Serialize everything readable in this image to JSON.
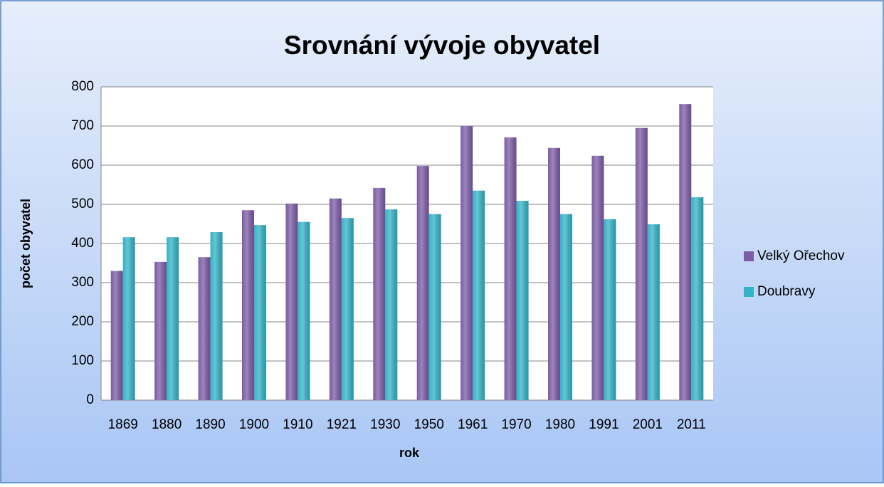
{
  "chart_data": {
    "type": "bar",
    "title": "Srovnání vývoje obyvatel",
    "x_label": "rok",
    "y_label": "počet obyvatel",
    "categories": [
      "1869",
      "1880",
      "1890",
      "1900",
      "1910",
      "1921",
      "1930",
      "1950",
      "1961",
      "1970",
      "1980",
      "1991",
      "2001",
      "2011"
    ],
    "series": [
      {
        "name": "Velký Ořechov",
        "color": "#7b5ca6",
        "values": [
          330,
          353,
          365,
          485,
          502,
          515,
          542,
          598,
          700,
          671,
          644,
          624,
          695,
          756
        ]
      },
      {
        "name": "Doubravy",
        "color": "#33b3c6",
        "values": [
          416,
          416,
          429,
          447,
          455,
          465,
          487,
          475,
          535,
          509,
          475,
          462,
          449,
          518
        ]
      }
    ],
    "ylim": [
      0,
      800
    ],
    "yticks": [
      0,
      100,
      200,
      300,
      400,
      500,
      600,
      700,
      800
    ],
    "grid": true,
    "legend": "right"
  }
}
